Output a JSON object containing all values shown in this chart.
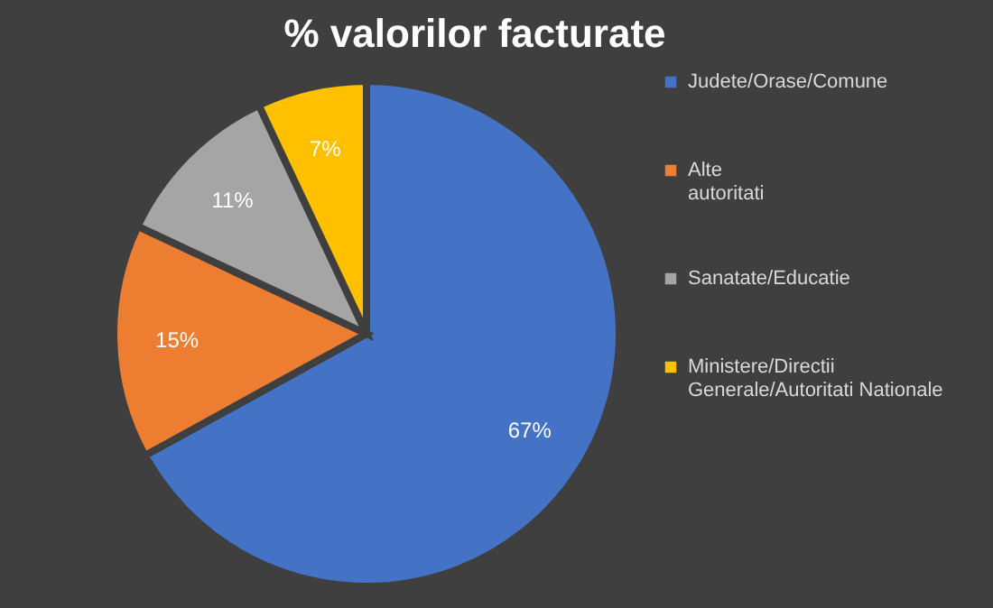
{
  "chart_data": {
    "type": "pie",
    "title": "% valorilor facturate",
    "categories": [
      "Judete/Orase/Comune",
      "Alte autoritati",
      "Sanatate/Educatie",
      "Ministere/Directii Generale/Autoritati Nationale"
    ],
    "values": [
      67,
      15,
      11,
      7
    ],
    "colors": [
      "#4472c4",
      "#ed7d31",
      "#a5a5a5",
      "#ffc000"
    ],
    "value_labels": [
      "67%",
      "15%",
      "11%",
      "7%"
    ],
    "legend": "right"
  }
}
